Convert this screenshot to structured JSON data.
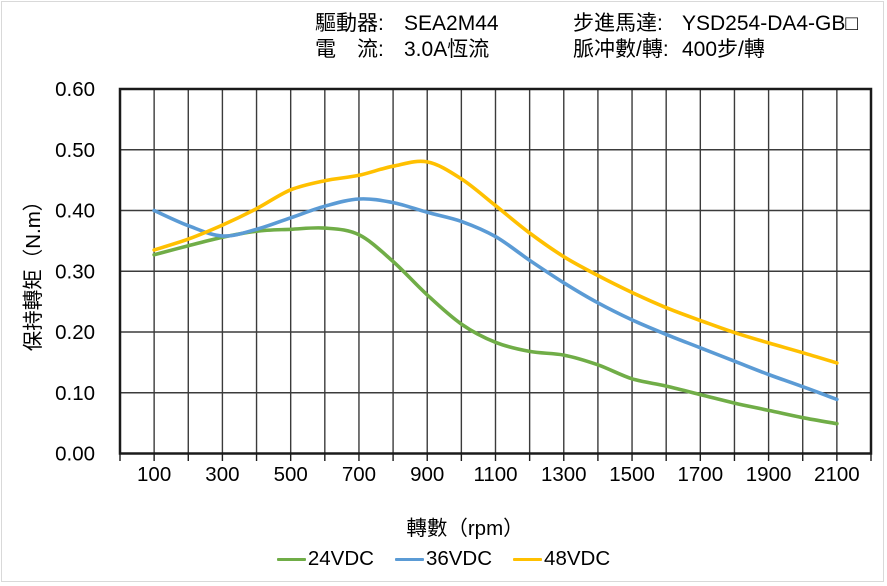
{
  "header": {
    "left": [
      {
        "label": "驅動器:",
        "value": "SEA2M44"
      },
      {
        "label": "電　流:",
        "value": "3.0A恆流"
      }
    ],
    "right": [
      {
        "label": "步進馬達:",
        "value": "YSD254-DA4-GB□"
      },
      {
        "label": "脈冲數/轉:",
        "value": "400步/轉"
      }
    ]
  },
  "chart_data": {
    "type": "line",
    "xlabel": "轉數（rpm）",
    "ylabel": "保持轉矩（N.m）",
    "xlim": [
      0,
      2200
    ],
    "ylim": [
      0,
      0.6
    ],
    "grid": true,
    "grid_step_x": 100,
    "legend_position": "bottom",
    "x_tick_labels": [
      100,
      300,
      500,
      700,
      900,
      1100,
      1300,
      1500,
      1700,
      1900,
      2100
    ],
    "y_ticks": [
      0.0,
      0.1,
      0.2,
      0.3,
      0.4,
      0.5,
      0.6
    ],
    "x": [
      100,
      200,
      300,
      400,
      500,
      600,
      700,
      800,
      900,
      1000,
      1100,
      1200,
      1300,
      1400,
      1500,
      1600,
      1700,
      1800,
      1900,
      2000,
      2100
    ],
    "series": [
      {
        "name": "24VDC",
        "color": "#70AD47",
        "values": [
          0.327,
          0.342,
          0.356,
          0.366,
          0.369,
          0.371,
          0.36,
          0.316,
          0.261,
          0.213,
          0.183,
          0.168,
          0.162,
          0.146,
          0.123,
          0.111,
          0.097,
          0.083,
          0.071,
          0.059,
          0.049
        ]
      },
      {
        "name": "36VDC",
        "color": "#5B9BD5",
        "values": [
          0.4,
          0.375,
          0.358,
          0.369,
          0.388,
          0.407,
          0.419,
          0.413,
          0.397,
          0.382,
          0.357,
          0.318,
          0.281,
          0.248,
          0.22,
          0.196,
          0.174,
          0.152,
          0.13,
          0.11,
          0.089
        ]
      },
      {
        "name": "48VDC",
        "color": "#FFC000",
        "values": [
          0.335,
          0.353,
          0.376,
          0.403,
          0.434,
          0.449,
          0.458,
          0.473,
          0.48,
          0.452,
          0.408,
          0.363,
          0.324,
          0.293,
          0.265,
          0.24,
          0.219,
          0.199,
          0.182,
          0.166,
          0.149
        ]
      }
    ],
    "colors": {
      "axis": "#1a1a1a",
      "gridline": "#3b3b3b",
      "page_border": "#d9d9d9"
    }
  }
}
